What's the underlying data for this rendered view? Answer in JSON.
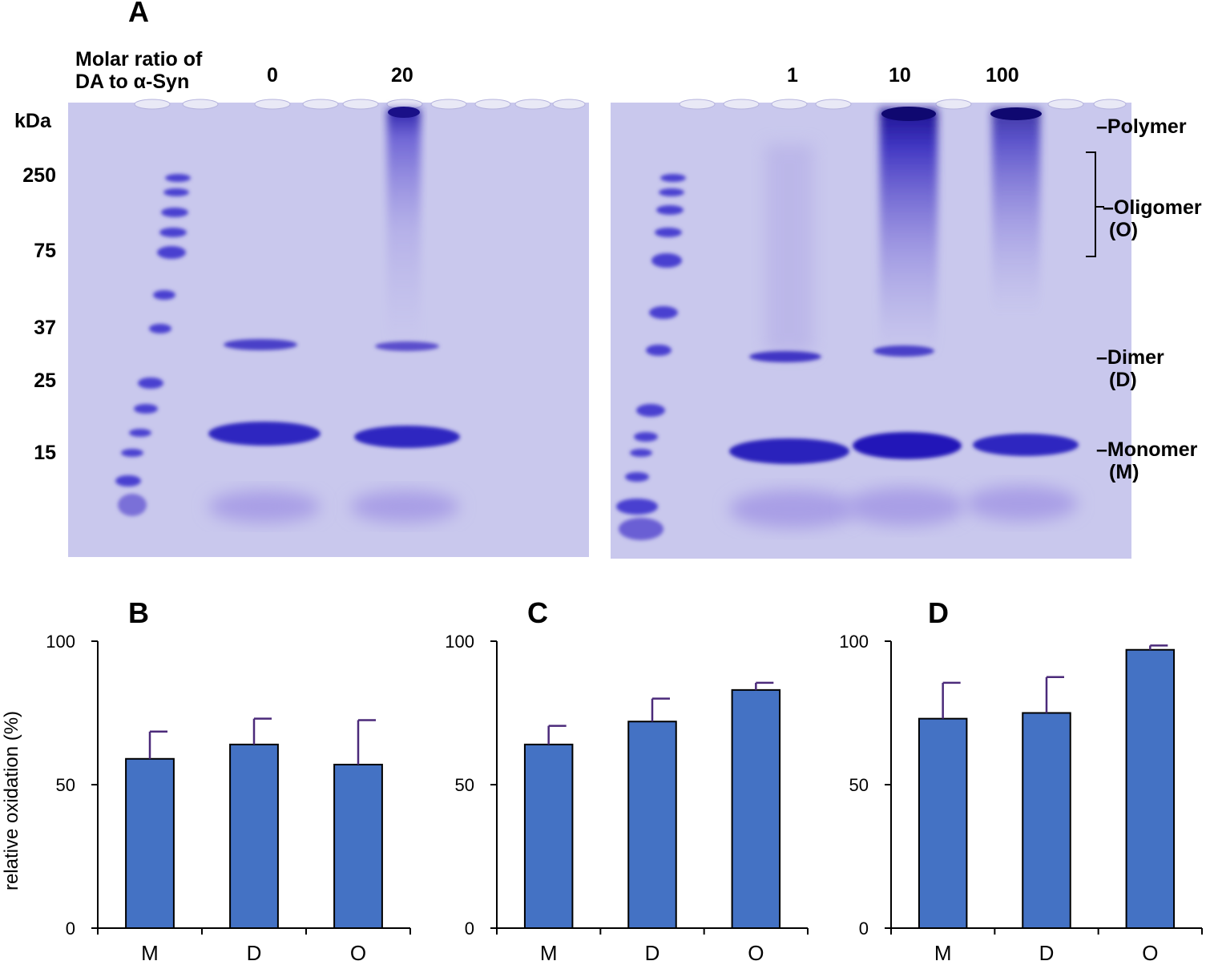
{
  "figure": {
    "panel_a": {
      "letter": "A",
      "ratio_label_line1": "Molar ratio of",
      "ratio_label_line2": "DA to α-Syn",
      "lane_labels": [
        "0",
        "20",
        "1",
        "10",
        "100"
      ],
      "kda_label": "kDa",
      "ladder_labels": [
        "250",
        "75",
        "37",
        "25",
        "15"
      ],
      "band_labels": {
        "polymer": "–Polymer",
        "oligomer_line1": "–Oligomer",
        "oligomer_line2": "(O)",
        "dimer_line1": "–Dimer",
        "dimer_line2": "(D)",
        "monomer_line1": "–Monomer",
        "monomer_line2": "(M)"
      },
      "gel_colors": {
        "background": "#c8c7ec",
        "band": "#3a2fc8",
        "ladder": "#4a3fd0",
        "smear": "#8f82de"
      }
    },
    "bar_color": "#4472c4",
    "error_color": "#4b2a7a"
  },
  "chart_data": [
    {
      "type": "bar",
      "panel": "B",
      "categories": [
        "M",
        "D",
        "O"
      ],
      "values": [
        59,
        64,
        57
      ],
      "errors": [
        9.5,
        9,
        15.5
      ],
      "ylabel": "relative oxidation (%)",
      "yticks": [
        "0",
        "50",
        "100"
      ],
      "ylim": [
        0,
        100
      ]
    },
    {
      "type": "bar",
      "panel": "C",
      "categories": [
        "M",
        "D",
        "O"
      ],
      "values": [
        64,
        72,
        83
      ],
      "errors": [
        6.5,
        8,
        2.5
      ],
      "ylabel": "",
      "yticks": [
        "0",
        "50",
        "100"
      ],
      "ylim": [
        0,
        100
      ]
    },
    {
      "type": "bar",
      "panel": "D",
      "categories": [
        "M",
        "D",
        "O"
      ],
      "values": [
        73,
        75,
        97
      ],
      "errors": [
        12.5,
        12.5,
        1.5
      ],
      "ylabel": "",
      "yticks": [
        "0",
        "50",
        "100"
      ],
      "ylim": [
        0,
        100
      ]
    }
  ]
}
